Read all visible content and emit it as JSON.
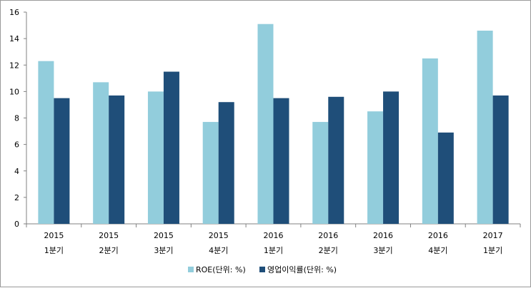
{
  "chart_data": {
    "type": "bar",
    "categories": [
      [
        "2015",
        "1분기"
      ],
      [
        "2015",
        "2분기"
      ],
      [
        "2015",
        "3분기"
      ],
      [
        "2015",
        "4분기"
      ],
      [
        "2016",
        "1분기"
      ],
      [
        "2016",
        "2분기"
      ],
      [
        "2016",
        "3분기"
      ],
      [
        "2016",
        "4분기"
      ],
      [
        "2017",
        "1분기"
      ]
    ],
    "series": [
      {
        "name": "ROE(단위: %)",
        "color": "#92cddc",
        "values": [
          12.3,
          10.7,
          10.0,
          7.7,
          15.1,
          7.7,
          8.5,
          12.5,
          14.6
        ]
      },
      {
        "name": "영업이익률(단위: %)",
        "color": "#1f4e79",
        "values": [
          9.5,
          9.7,
          11.5,
          9.2,
          9.5,
          9.6,
          10.0,
          6.9,
          9.7
        ]
      }
    ],
    "yticks": [
      0,
      2,
      4,
      6,
      8,
      10,
      12,
      14,
      16
    ],
    "ylim": [
      0,
      16
    ],
    "grid": false,
    "legend": "bottom",
    "title": "",
    "xlabel": "",
    "ylabel": ""
  }
}
